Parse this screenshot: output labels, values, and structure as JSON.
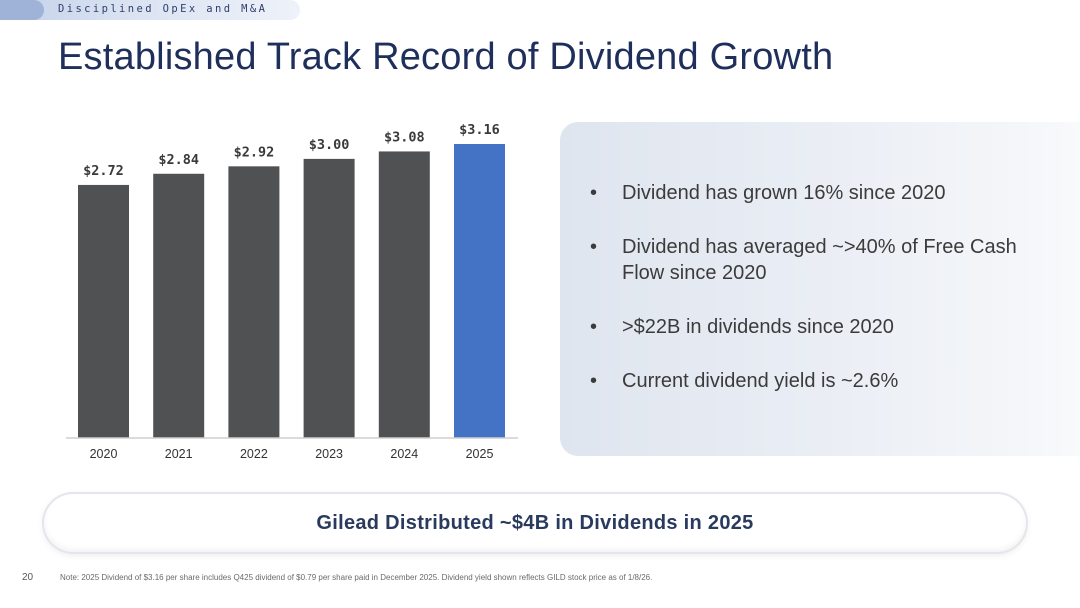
{
  "header": {
    "section_label": "Disciplined OpEx and M&A",
    "title": "Established Track Record of Dividend Growth"
  },
  "chart_data": {
    "type": "bar",
    "title": "",
    "xlabel": "",
    "ylabel": "",
    "categories": [
      "2020",
      "2021",
      "2022",
      "2023",
      "2024",
      "2025"
    ],
    "values": [
      2.72,
      2.84,
      2.92,
      3.0,
      3.08,
      3.16
    ],
    "value_labels": [
      "$2.72",
      "$2.84",
      "$2.92",
      "$3.00",
      "$3.08",
      "$3.16"
    ],
    "ylim": [
      0,
      3.16
    ],
    "grid": false,
    "colors": {
      "default": "#505153",
      "highlight": "#4472c4",
      "baseline": "#cfcfcf"
    },
    "highlight_category": "2025"
  },
  "bullets": [
    "Dividend has grown 16% since 2020",
    "Dividend has averaged ~>40% of Free Cash Flow since 2020",
    ">$22B in dividends since 2020",
    "Current dividend yield is ~2.6%"
  ],
  "callout": {
    "text": "Gilead Distributed ~$4B in Dividends in 2025"
  },
  "footer": {
    "page_number": "20",
    "note": "Note: 2025 Dividend of $3.16 per share includes Q425 dividend of $0.79 per share paid in December 2025. Dividend yield shown reflects GILD stock price as of 1/8/26."
  }
}
